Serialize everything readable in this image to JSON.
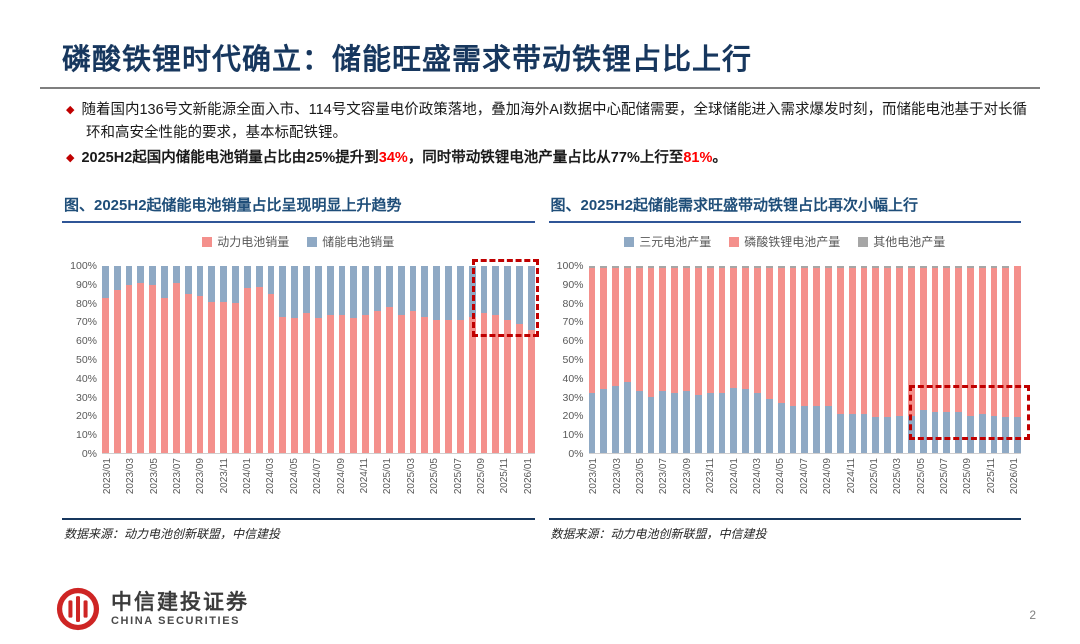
{
  "header": {
    "title": "磷酸铁锂时代确立：储能旺盛需求带动铁锂占比上行"
  },
  "bullets": {
    "b1": "随着国内136号文新能源全面入市、114号文容量电价政策落地，叠加海外AI数据中心配储需要，全球储能进入需求爆发时刻，而储能电池基于对长循环和高安全性能的要求，基本标配铁锂。",
    "b2": {
      "pre": "2025H2起国内储能电池销量占比由25%提升到",
      "red1": "34%",
      "mid": "，同时带动铁锂电池产量占比从77%上行至",
      "red2": "81%",
      "end": "。"
    }
  },
  "colors": {
    "accent_red": "#C00000",
    "highlight_red": "#FF0000",
    "navy": "#17375E",
    "chart_title_blue": "#1F4E79",
    "bar_red": "#F4908C",
    "bar_blue": "#8FA9C4",
    "bar_gray": "#A6A6A6"
  },
  "chart_data": [
    {
      "type": "bar",
      "stacked": true,
      "title": "图、2025H2起储能电池销量占比呈现明显上升趋势",
      "source": "数据来源：动力电池创新联盟，中信建投",
      "ylim": [
        0,
        100
      ],
      "y_ticks": [
        "100%",
        "90%",
        "80%",
        "70%",
        "60%",
        "50%",
        "40%",
        "30%",
        "20%",
        "10%",
        "0%"
      ],
      "x_tick_every": 2,
      "legend_position": "top",
      "grid": false,
      "categories": [
        "2023/01",
        "2023/02",
        "2023/03",
        "2023/04",
        "2023/05",
        "2023/06",
        "2023/07",
        "2023/08",
        "2023/09",
        "2023/10",
        "2023/11",
        "2023/12",
        "2024/01",
        "2024/02",
        "2024/03",
        "2024/04",
        "2024/05",
        "2024/06",
        "2024/07",
        "2024/08",
        "2024/09",
        "2024/10",
        "2024/11",
        "2024/12",
        "2025/01",
        "2025/02",
        "2025/03",
        "2025/04",
        "2025/05",
        "2025/06",
        "2025/07",
        "2025/08",
        "2025/09",
        "2025/10",
        "2025/11",
        "2025/12",
        "2026/01"
      ],
      "series": [
        {
          "name": "动力电池销量",
          "color": "#F4908C",
          "values": [
            83,
            87,
            90,
            91,
            90,
            83,
            91,
            85,
            84,
            81,
            81,
            80,
            88,
            89,
            85,
            73,
            72,
            75,
            72,
            74,
            74,
            72,
            74,
            76,
            78,
            74,
            76,
            73,
            71,
            71,
            71,
            73,
            75,
            74,
            71,
            69,
            66
          ]
        },
        {
          "name": "储能电池销量",
          "color": "#8FA9C4",
          "values": [
            17,
            13,
            10,
            9,
            10,
            17,
            9,
            15,
            16,
            19,
            19,
            20,
            12,
            11,
            15,
            27,
            28,
            25,
            28,
            26,
            26,
            28,
            26,
            24,
            22,
            26,
            24,
            27,
            29,
            29,
            29,
            27,
            25,
            26,
            29,
            31,
            34
          ]
        }
      ],
      "highlight_box": {
        "left_pct": 85.5,
        "width_pct": 15.5,
        "y_top_val": 104,
        "y_bottom_val": 62,
        "color": "#C00000"
      }
    },
    {
      "type": "bar",
      "stacked": true,
      "title": "图、2025H2起储能需求旺盛带动铁锂占比再次小幅上行",
      "source": "数据来源：动力电池创新联盟，中信建投",
      "ylim": [
        0,
        100
      ],
      "y_ticks": [
        "100%",
        "90%",
        "80%",
        "70%",
        "60%",
        "50%",
        "40%",
        "30%",
        "20%",
        "10%",
        "0%"
      ],
      "x_tick_every": 2,
      "legend_position": "top",
      "grid": false,
      "categories": [
        "2023/01",
        "2023/02",
        "2023/03",
        "2023/04",
        "2023/05",
        "2023/06",
        "2023/07",
        "2023/08",
        "2023/09",
        "2023/10",
        "2023/11",
        "2023/12",
        "2024/01",
        "2024/02",
        "2024/03",
        "2024/04",
        "2024/05",
        "2024/06",
        "2024/07",
        "2024/08",
        "2024/09",
        "2024/10",
        "2024/11",
        "2024/12",
        "2025/01",
        "2025/02",
        "2025/03",
        "2025/04",
        "2025/05",
        "2025/06",
        "2025/07",
        "2025/08",
        "2025/09",
        "2025/10",
        "2025/11",
        "2025/12",
        "2026/01"
      ],
      "series": [
        {
          "name": "三元电池产量",
          "color": "#8FA9C4",
          "values": [
            32,
            34,
            36,
            38,
            33,
            30,
            33,
            32,
            33,
            31,
            32,
            32,
            35,
            34,
            32,
            29,
            27,
            25,
            25,
            25,
            25,
            21,
            21,
            21,
            19,
            19,
            20,
            20,
            23,
            22,
            22,
            22,
            20,
            21,
            20,
            19,
            19
          ]
        },
        {
          "name": "磷酸铁锂电池产量",
          "color": "#F4908C",
          "values": [
            67,
            65,
            63,
            61,
            66,
            69,
            66,
            67,
            66,
            68,
            67,
            67,
            64,
            65,
            67,
            70,
            72,
            74,
            74,
            74,
            74,
            78,
            78,
            78,
            80,
            80,
            79,
            79,
            76,
            77,
            77,
            77,
            79,
            78,
            79,
            80,
            81
          ]
        },
        {
          "name": "其他电池产量",
          "color": "#A6A6A6",
          "values": [
            1,
            1,
            1,
            1,
            1,
            1,
            1,
            1,
            1,
            1,
            1,
            1,
            1,
            1,
            1,
            1,
            1,
            1,
            1,
            1,
            1,
            1,
            1,
            1,
            1,
            1,
            1,
            1,
            1,
            1,
            1,
            1,
            1,
            1,
            1,
            1,
            0
          ]
        }
      ],
      "highlight_box": {
        "left_pct": 74,
        "width_pct": 28,
        "y_top_val": 36.5,
        "y_bottom_val": 7,
        "color": "#C00000"
      }
    }
  ],
  "footer": {
    "logo_cn": "中信建投证券",
    "logo_en": "CHINA SECURITIES",
    "page_number": "2"
  }
}
